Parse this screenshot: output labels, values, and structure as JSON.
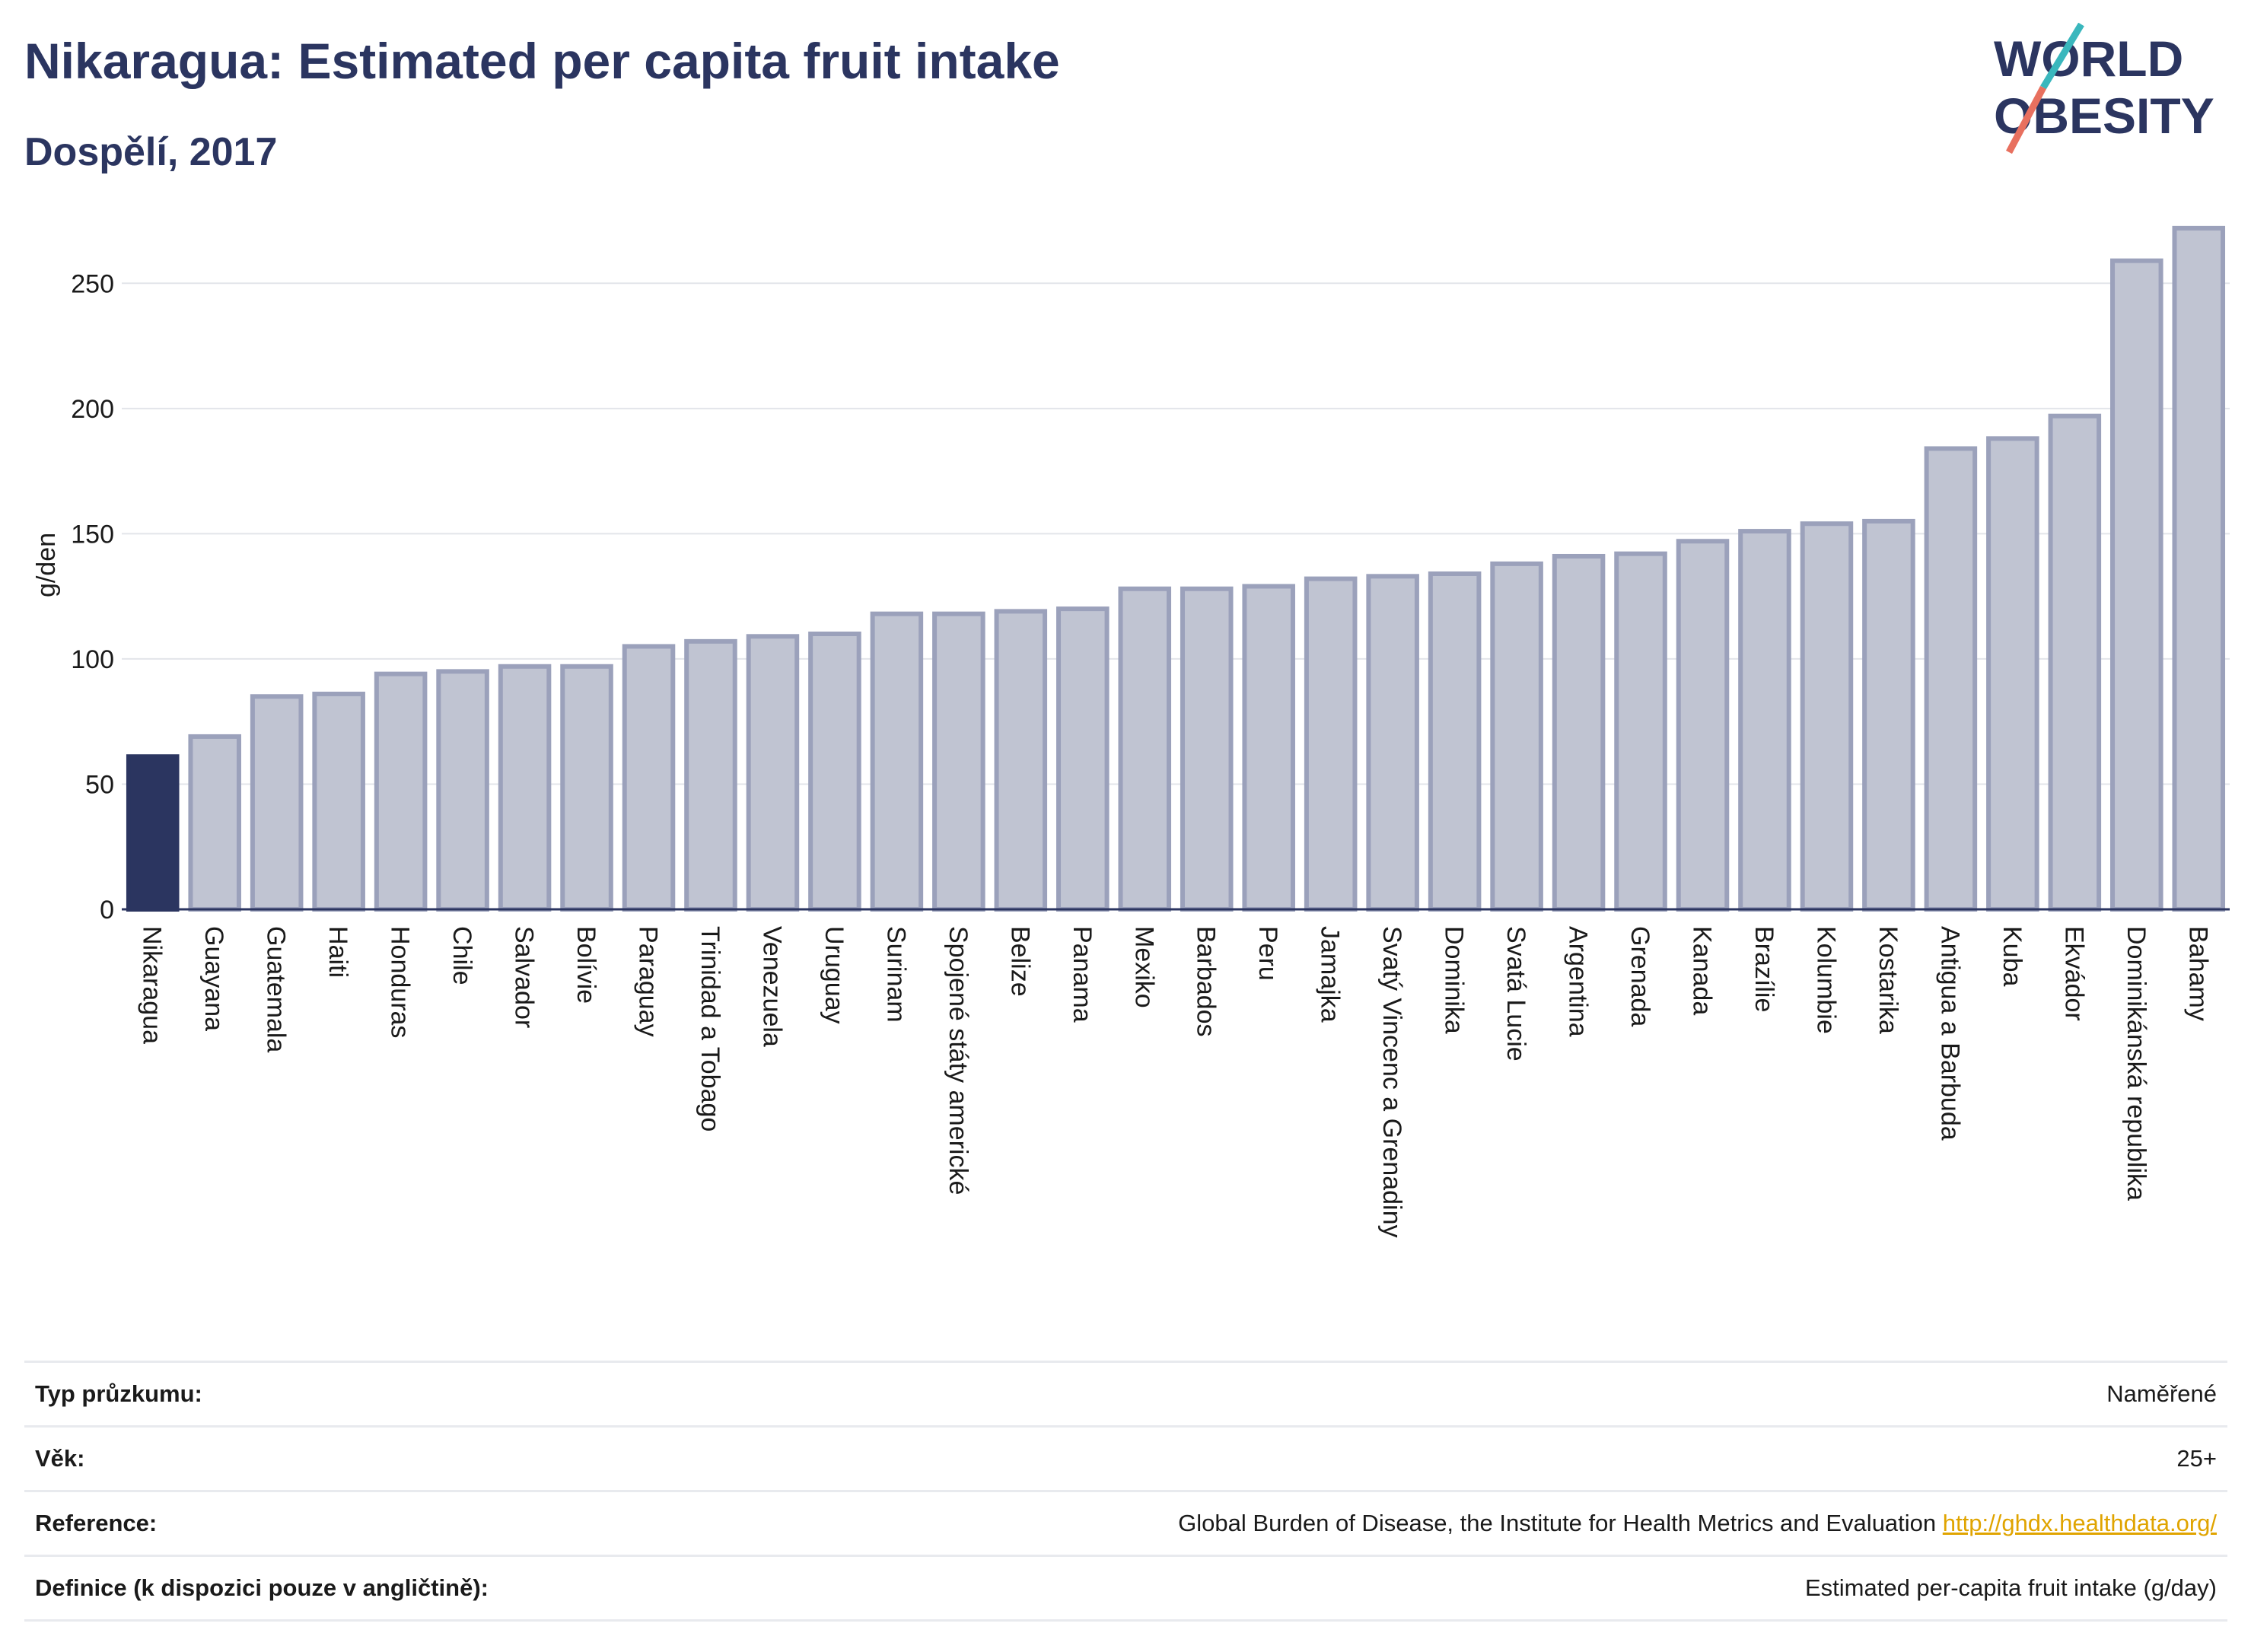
{
  "header": {
    "title": "Nikaragua: Estimated per capita fruit intake",
    "subtitle": "Dospělí, 2017"
  },
  "logo": {
    "line1": "WORLD",
    "line2": "OBESITY",
    "slash_colors": [
      "#3ab7bd",
      "#e8705f"
    ]
  },
  "chart_data": {
    "type": "bar",
    "title": "",
    "xlabel": "",
    "ylabel": "g/den",
    "ylim": [
      0,
      275
    ],
    "yticks": [
      0,
      50,
      100,
      150,
      200,
      250
    ],
    "grid": true,
    "highlight_category": "Nikaragua",
    "colors": {
      "highlight": "#2b3560",
      "bar": "#c0c4d2",
      "bar_edge": "#9ba1bb"
    },
    "categories": [
      "Nikaragua",
      "Guayana",
      "Guatemala",
      "Haiti",
      "Honduras",
      "Chile",
      "Salvador",
      "Bolívie",
      "Paraguay",
      "Trinidad a Tobago",
      "Venezuela",
      "Uruguay",
      "Surinam",
      "Spojené státy americké",
      "Belize",
      "Panama",
      "Mexiko",
      "Barbados",
      "Peru",
      "Jamajka",
      "Svatý Vincenc a Grenadiny",
      "Dominika",
      "Svatá Lucie",
      "Argentina",
      "Grenada",
      "Kanada",
      "Brazílie",
      "Kolumbie",
      "Kostarika",
      "Antigua a Barbuda",
      "Kuba",
      "Ekvádor",
      "Dominikánská republika",
      "Bahamy"
    ],
    "values": [
      61,
      69,
      85,
      86,
      94,
      95,
      97,
      97,
      105,
      107,
      109,
      110,
      118,
      118,
      119,
      120,
      128,
      128,
      129,
      132,
      133,
      134,
      138,
      141,
      142,
      147,
      151,
      154,
      155,
      184,
      188,
      197,
      259,
      272
    ]
  },
  "info": {
    "rows": [
      {
        "label": "Typ průzkumu:",
        "value": "Naměřené"
      },
      {
        "label": "Věk:",
        "value": "25+"
      },
      {
        "label": "Reference:",
        "value": "Global Burden of Disease, the Institute for Health Metrics and Evaluation",
        "link": "http://ghdx.healthdata.org/"
      },
      {
        "label": "Definice (k dispozici pouze v angličtině):",
        "value": "Estimated per-capita fruit intake (g/day)"
      }
    ]
  }
}
